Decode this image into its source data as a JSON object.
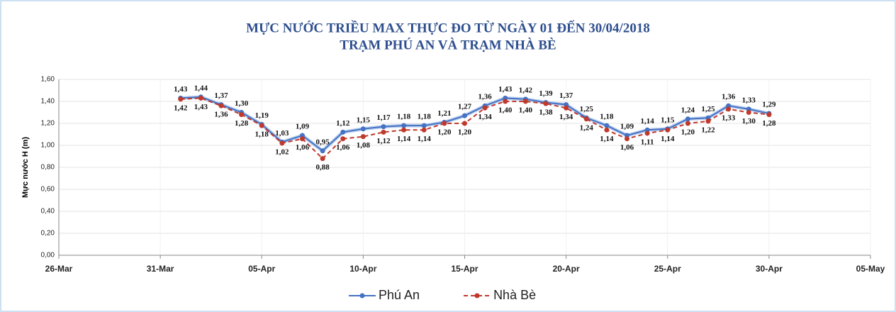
{
  "chart_data": {
    "type": "line",
    "title": "MỰC NƯỚC TRIỀU MAX THỰC ĐO TỪ NGÀY 01 ĐẾN 30/04/2018",
    "subtitle": "TRẠM PHÚ AN VÀ TRẠM NHÀ BÈ",
    "y_label": "Mực nước H (m)",
    "x": [
      "01-Apr",
      "02-Apr",
      "03-Apr",
      "04-Apr",
      "05-Apr",
      "06-Apr",
      "07-Apr",
      "08-Apr",
      "09-Apr",
      "10-Apr",
      "11-Apr",
      "12-Apr",
      "13-Apr",
      "14-Apr",
      "15-Apr",
      "16-Apr",
      "17-Apr",
      "18-Apr",
      "19-Apr",
      "20-Apr",
      "21-Apr",
      "22-Apr",
      "23-Apr",
      "24-Apr",
      "25-Apr",
      "26-Apr",
      "27-Apr",
      "28-Apr",
      "29-Apr",
      "30-Apr"
    ],
    "series": [
      {
        "name": "Phú An",
        "color": "#4472c4",
        "values": [
          1.43,
          1.44,
          1.37,
          1.3,
          1.19,
          1.03,
          1.09,
          0.95,
          1.12,
          1.15,
          1.17,
          1.18,
          1.18,
          1.21,
          1.27,
          1.36,
          1.43,
          1.42,
          1.39,
          1.37,
          1.25,
          1.18,
          1.09,
          1.14,
          1.15,
          1.24,
          1.25,
          1.36,
          1.33,
          1.29
        ],
        "value_labels": [
          "1,43",
          "1,44",
          "1,37",
          "1,30",
          "1,19",
          "1,03",
          "1,09",
          "0,95",
          "1,12",
          "1,15",
          "1,17",
          "1,18",
          "1,18",
          "1,21",
          "1,27",
          "1,36",
          "1,43",
          "1,42",
          "1,39",
          "1,37",
          "1,25",
          "1,18",
          "1,09",
          "1,14",
          "1,15",
          "1,24",
          "1,25",
          "1,36",
          "1,33",
          "1,29"
        ]
      },
      {
        "name": "Nhà Bè",
        "color": "#c0392b",
        "dashed": true,
        "values": [
          1.42,
          1.43,
          1.36,
          1.28,
          1.18,
          1.02,
          1.06,
          0.88,
          1.06,
          1.08,
          1.12,
          1.14,
          1.14,
          1.2,
          1.2,
          1.34,
          1.4,
          1.4,
          1.38,
          1.34,
          1.24,
          1.14,
          1.06,
          1.11,
          1.14,
          1.2,
          1.22,
          1.33,
          1.3,
          1.28
        ],
        "value_labels": [
          "1,42",
          "1,43",
          "1,36",
          "1,28",
          "1,18",
          "1,02",
          "1,06",
          "0,88",
          "1,06",
          "1,08",
          "1,12",
          "1,14",
          "1,14",
          "1,20",
          "1,20",
          "1,34",
          "1,40",
          "1,40",
          "1,38",
          "1,34",
          "1,24",
          "1,14",
          "1,06",
          "1,11",
          "1,14",
          "1,20",
          "1,22",
          "1,33",
          "1,30",
          "1,28"
        ]
      }
    ],
    "xlim": [
      "26-Mar",
      "05-May"
    ],
    "xticks": [
      "26-Mar",
      "31-Mar",
      "05-Apr",
      "10-Apr",
      "15-Apr",
      "20-Apr",
      "25-Apr",
      "30-Apr",
      "05-May"
    ],
    "ylim": [
      0,
      1.6
    ],
    "yticks": [
      {
        "value": 0,
        "label": "0,00"
      },
      {
        "value": 0.2,
        "label": "0,20"
      },
      {
        "value": 0.4,
        "label": "0,40"
      },
      {
        "value": 0.6,
        "label": "0,60"
      },
      {
        "value": 0.8,
        "label": "0,80"
      },
      {
        "value": 1,
        "label": "1,00"
      },
      {
        "value": 1.2,
        "label": "1,20"
      },
      {
        "value": 1.4,
        "label": "1,40"
      },
      {
        "value": 1.6,
        "label": "1,60"
      }
    ],
    "grid": true,
    "legend": "bottom"
  }
}
